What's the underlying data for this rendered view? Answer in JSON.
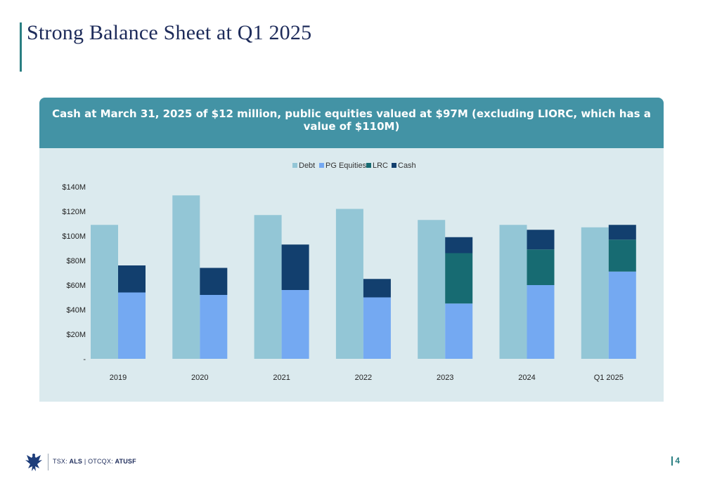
{
  "slide": {
    "title": "Strong Balance Sheet at Q1 2025",
    "page_number": "4"
  },
  "panel": {
    "header": "Cash at March 31, 2025 of $12 million, public equities valued at $97M (excluding LIORC, which has a value of $110M)"
  },
  "footer": {
    "ticker_prefix": "TSX: ",
    "ticker_tsx": "ALS",
    "ticker_sep": " | OTCQX: ",
    "ticker_otc": "ATUSF",
    "logo_icon": "eagle-icon"
  },
  "colors": {
    "debt": "#93c6d6",
    "pg_equities": "#74a9f2",
    "lrc": "#176b72",
    "cash": "#123f6e"
  },
  "chart_data": {
    "type": "bar",
    "stacking": "Debt as its own bar; PG Equities, LRC and Cash stacked in a second bar",
    "categories": [
      "2019",
      "2020",
      "2021",
      "2022",
      "2023",
      "2024",
      "Q1 2025"
    ],
    "series": [
      {
        "name": "Debt",
        "stack": "debt",
        "values": [
          109,
          133,
          117,
          122,
          113,
          109,
          107
        ]
      },
      {
        "name": "PG Equities",
        "stack": "assets",
        "values": [
          54,
          52,
          56,
          50,
          45,
          60,
          71
        ]
      },
      {
        "name": "LRC",
        "stack": "assets",
        "values": [
          0,
          0,
          0,
          0,
          41,
          29,
          26
        ]
      },
      {
        "name": "Cash",
        "stack": "assets",
        "values": [
          22,
          22,
          37,
          15,
          13,
          16,
          12
        ]
      }
    ],
    "ylim": [
      0,
      140
    ],
    "yticks": [
      0,
      20,
      40,
      60,
      80,
      100,
      120,
      140
    ],
    "ytick_labels": [
      "-",
      "$20M",
      "$40M",
      "$60M",
      "$80M",
      "$100M",
      "$120M",
      "$140M"
    ],
    "legend": [
      "Debt",
      "PG Equities",
      "LRC",
      "Cash"
    ],
    "legend_position": "top-center",
    "grid": false,
    "xlabel": "",
    "ylabel": ""
  }
}
